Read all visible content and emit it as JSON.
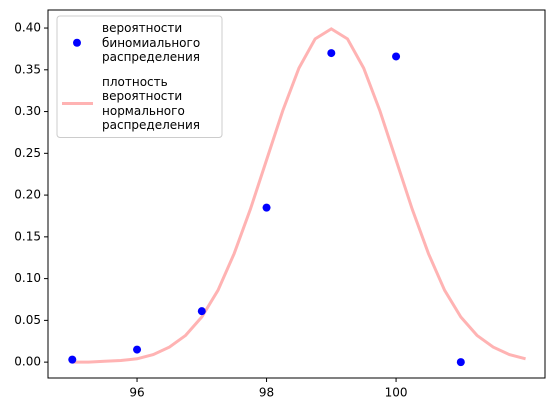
{
  "chart_data": {
    "type": "scatter",
    "series": [
      {
        "name": "вероятности\nбиномиального\nраспределения",
        "type": "scatter",
        "color": "#0000ff",
        "x": [
          95,
          96,
          97,
          98,
          99,
          100,
          101
        ],
        "values": [
          0.003,
          0.015,
          0.061,
          0.185,
          0.37,
          0.366,
          0.0
        ]
      },
      {
        "name": "плотность\nвероятности\nнормального\nраспределения",
        "type": "line",
        "color": "#ffb3b3",
        "x": [
          95,
          95.25,
          95.5,
          95.75,
          96,
          96.25,
          96.5,
          96.75,
          97,
          97.25,
          97.5,
          97.75,
          98,
          98.25,
          98.5,
          98.75,
          99,
          99.25,
          99.5,
          99.75,
          100,
          100.25,
          100.5,
          100.75,
          101,
          101.25,
          101.5,
          101.75,
          102
        ],
        "values": [
          0.0,
          0.0,
          0.001,
          0.002,
          0.004,
          0.009,
          0.018,
          0.032,
          0.054,
          0.086,
          0.13,
          0.183,
          0.242,
          0.301,
          0.352,
          0.387,
          0.399,
          0.387,
          0.352,
          0.301,
          0.242,
          0.183,
          0.13,
          0.086,
          0.054,
          0.032,
          0.018,
          0.009,
          0.004
        ]
      }
    ],
    "xlim": [
      94.625,
      102.3
    ],
    "xticks": [
      96,
      98,
      100
    ],
    "ylim": [
      -0.019,
      0.4216
    ],
    "yticks": [
      {
        "value": 0,
        "label": "0.00"
      },
      {
        "value": 0.05,
        "label": "0.05"
      },
      {
        "value": 0.1,
        "label": "0.10"
      },
      {
        "value": 0.15,
        "label": "0.15"
      },
      {
        "value": 0.2,
        "label": "0.20"
      },
      {
        "value": 0.25,
        "label": "0.25"
      },
      {
        "value": 0.3,
        "label": "0.30"
      },
      {
        "value": 0.35,
        "label": "0.35"
      },
      {
        "value": 0.4,
        "label": "0.40"
      }
    ],
    "legend": "upper left"
  }
}
